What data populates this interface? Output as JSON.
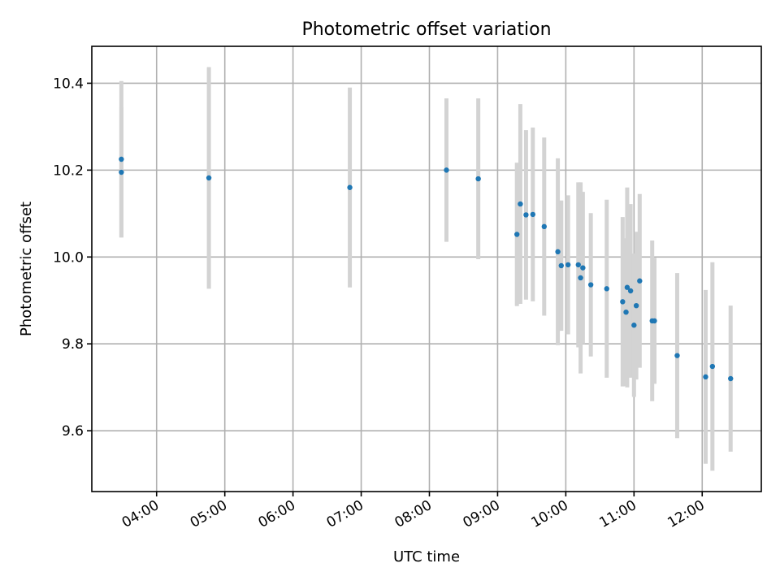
{
  "chart_data": {
    "type": "scatter",
    "title": "Photometric offset variation",
    "xlabel": "UTC time",
    "ylabel": "Photometric offset",
    "xlim": [
      "03:03",
      "12:52"
    ],
    "ylim": [
      9.46,
      10.485
    ],
    "x_ticks": [
      "04:00",
      "05:00",
      "06:00",
      "07:00",
      "08:00",
      "09:00",
      "10:00",
      "11:00",
      "12:00"
    ],
    "y_ticks": [
      9.6,
      9.8,
      10.0,
      10.2,
      10.4
    ],
    "grid": true,
    "point_color": "#1f77b4",
    "errorbar_color": "#d3d3d3",
    "points": [
      {
        "x": "03:29",
        "y": 10.225,
        "err": 0.18
      },
      {
        "x": "03:29",
        "y": 10.195,
        "err": 0.15
      },
      {
        "x": "04:46",
        "y": 10.182,
        "err": 0.255
      },
      {
        "x": "06:50",
        "y": 10.16,
        "err": 0.23
      },
      {
        "x": "08:15",
        "y": 10.2,
        "err": 0.165
      },
      {
        "x": "08:43",
        "y": 10.18,
        "err": 0.185
      },
      {
        "x": "09:17",
        "y": 10.052,
        "err": 0.165
      },
      {
        "x": "09:20",
        "y": 10.122,
        "err": 0.23
      },
      {
        "x": "09:25",
        "y": 10.097,
        "err": 0.195
      },
      {
        "x": "09:31",
        "y": 10.098,
        "err": 0.2
      },
      {
        "x": "09:41",
        "y": 10.07,
        "err": 0.205
      },
      {
        "x": "09:53",
        "y": 10.012,
        "err": 0.215
      },
      {
        "x": "09:56",
        "y": 9.98,
        "err": 0.15
      },
      {
        "x": "10:02",
        "y": 9.982,
        "err": 0.16
      },
      {
        "x": "10:11",
        "y": 9.982,
        "err": 0.19
      },
      {
        "x": "10:13",
        "y": 9.952,
        "err": 0.22
      },
      {
        "x": "10:15",
        "y": 9.975,
        "err": 0.175
      },
      {
        "x": "10:22",
        "y": 9.936,
        "err": 0.165
      },
      {
        "x": "10:36",
        "y": 9.927,
        "err": 0.205
      },
      {
        "x": "10:50",
        "y": 9.897,
        "err": 0.195
      },
      {
        "x": "10:53",
        "y": 9.873,
        "err": 0.17
      },
      {
        "x": "10:54",
        "y": 9.93,
        "err": 0.23
      },
      {
        "x": "10:57",
        "y": 9.922,
        "err": 0.2
      },
      {
        "x": "11:00",
        "y": 9.843,
        "err": 0.165
      },
      {
        "x": "11:02",
        "y": 9.888,
        "err": 0.17
      },
      {
        "x": "11:05",
        "y": 9.945,
        "err": 0.2
      },
      {
        "x": "11:16",
        "y": 9.853,
        "err": 0.185
      },
      {
        "x": "11:18",
        "y": 9.853,
        "err": 0.145
      },
      {
        "x": "11:38",
        "y": 9.773,
        "err": 0.19
      },
      {
        "x": "12:03",
        "y": 9.724,
        "err": 0.2
      },
      {
        "x": "12:09",
        "y": 9.748,
        "err": 0.24
      },
      {
        "x": "12:25",
        "y": 9.72,
        "err": 0.168
      }
    ]
  }
}
